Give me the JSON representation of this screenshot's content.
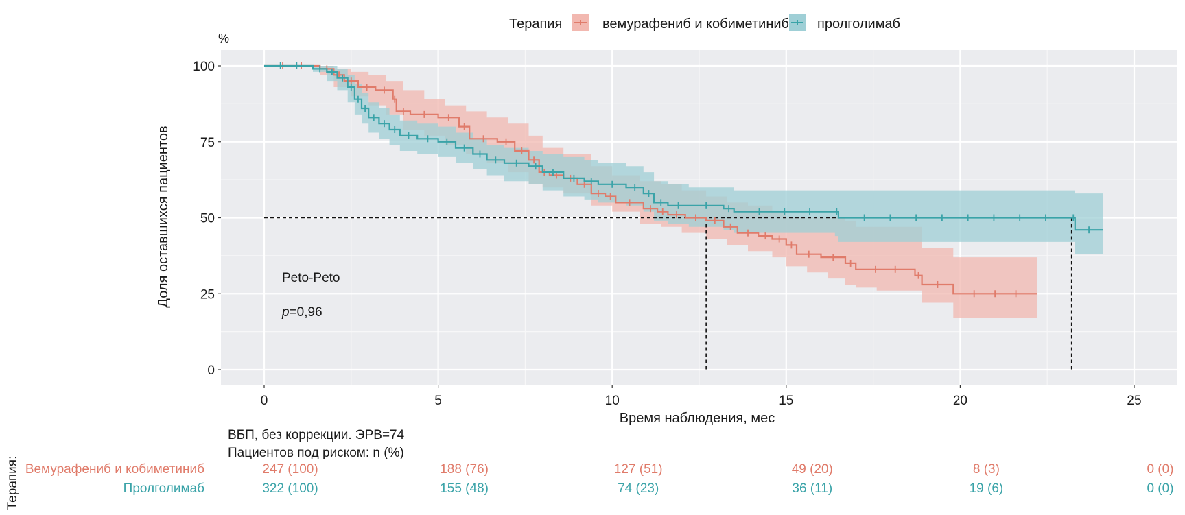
{
  "chart_data": {
    "type": "line",
    "subtype": "kaplan-meier",
    "title": "",
    "xlabel": "Время наблюдения, мес",
    "ylabel": "Доля оставшихся пациентов",
    "y_unit_label": "%",
    "xlim": [
      -1.2,
      26.2
    ],
    "ylim": [
      -5,
      105
    ],
    "x_ticks": [
      0,
      5,
      10,
      15,
      20,
      25
    ],
    "y_ticks": [
      0,
      25,
      50,
      75,
      100
    ],
    "grid": true,
    "legend": {
      "title": "Терапия",
      "position": "top",
      "entries": [
        {
          "label": "вемурафениб и кобиметиниб",
          "color": "#e07b6a"
        },
        {
          "label": "пролголимаб",
          "color": "#3aa3a8"
        }
      ]
    },
    "annotations": {
      "test": "Peto-Peto",
      "p_label": "p",
      "p_value": "=0,96"
    },
    "median_line": {
      "y": 50,
      "medians": [
        12.7,
        23.2
      ]
    },
    "series": [
      {
        "name": "вемурафениб и кобиметиниб",
        "color": "#e07b6a",
        "band_color": "#f2b8b0",
        "steps": [
          [
            0,
            100
          ],
          [
            1.6,
            99
          ],
          [
            2.0,
            97
          ],
          [
            2.3,
            95
          ],
          [
            2.7,
            93
          ],
          [
            3.2,
            92
          ],
          [
            3.7,
            89
          ],
          [
            3.8,
            85
          ],
          [
            4.2,
            84
          ],
          [
            5.0,
            83
          ],
          [
            5.6,
            80
          ],
          [
            5.9,
            76
          ],
          [
            6.7,
            75
          ],
          [
            7.2,
            72
          ],
          [
            7.6,
            69
          ],
          [
            7.9,
            65
          ],
          [
            8.2,
            64
          ],
          [
            8.6,
            63
          ],
          [
            9.0,
            61
          ],
          [
            9.4,
            58
          ],
          [
            9.8,
            57
          ],
          [
            10.1,
            55
          ],
          [
            10.9,
            53
          ],
          [
            11.3,
            52
          ],
          [
            11.6,
            51
          ],
          [
            12.1,
            50
          ],
          [
            12.7,
            49
          ],
          [
            13.2,
            47
          ],
          [
            13.6,
            45
          ],
          [
            14.2,
            44
          ],
          [
            14.6,
            43
          ],
          [
            15.0,
            41
          ],
          [
            15.3,
            38
          ],
          [
            16.0,
            37
          ],
          [
            16.7,
            35
          ],
          [
            17.0,
            33
          ],
          [
            18.7,
            31
          ],
          [
            18.9,
            28
          ],
          [
            19.8,
            25
          ],
          [
            22.2,
            25
          ]
        ],
        "lower": [
          [
            0,
            100
          ],
          [
            1.6,
            97
          ],
          [
            2.0,
            93
          ],
          [
            2.5,
            90
          ],
          [
            3.0,
            87
          ],
          [
            3.5,
            84
          ],
          [
            4.0,
            79
          ],
          [
            4.6,
            77
          ],
          [
            5.2,
            74
          ],
          [
            5.8,
            71
          ],
          [
            6.4,
            68
          ],
          [
            7.0,
            65
          ],
          [
            7.6,
            61
          ],
          [
            8.0,
            60
          ],
          [
            8.6,
            58
          ],
          [
            9.4,
            54
          ],
          [
            10.0,
            52
          ],
          [
            10.8,
            48
          ],
          [
            11.4,
            47
          ],
          [
            12.0,
            45
          ],
          [
            12.7,
            43
          ],
          [
            13.3,
            41
          ],
          [
            13.9,
            39
          ],
          [
            14.6,
            37
          ],
          [
            15.0,
            34
          ],
          [
            15.6,
            32
          ],
          [
            16.2,
            30
          ],
          [
            16.7,
            28
          ],
          [
            17.0,
            27
          ],
          [
            17.6,
            26
          ],
          [
            18.9,
            22
          ],
          [
            19.8,
            17
          ],
          [
            22.2,
            17
          ]
        ],
        "upper": [
          [
            0,
            100
          ],
          [
            1.6,
            100
          ],
          [
            2.0,
            99
          ],
          [
            2.5,
            98
          ],
          [
            3.0,
            97
          ],
          [
            3.5,
            95
          ],
          [
            4.0,
            92
          ],
          [
            4.6,
            89
          ],
          [
            5.2,
            87
          ],
          [
            5.8,
            85
          ],
          [
            6.4,
            83
          ],
          [
            7.0,
            81
          ],
          [
            7.6,
            77
          ],
          [
            8.0,
            73
          ],
          [
            8.6,
            71
          ],
          [
            9.4,
            67
          ],
          [
            10.0,
            64
          ],
          [
            10.8,
            62
          ],
          [
            11.4,
            61
          ],
          [
            12.0,
            59
          ],
          [
            12.7,
            57
          ],
          [
            13.3,
            55
          ],
          [
            13.9,
            54
          ],
          [
            14.6,
            52
          ],
          [
            15.0,
            50
          ],
          [
            15.6,
            50
          ],
          [
            16.2,
            50
          ],
          [
            16.7,
            49
          ],
          [
            17.0,
            47
          ],
          [
            18.9,
            40
          ],
          [
            19.8,
            37
          ],
          [
            22.2,
            37
          ]
        ]
      },
      {
        "name": "пролголимаб",
        "color": "#3aa3a8",
        "band_color": "#9fcfd6",
        "steps": [
          [
            0,
            100
          ],
          [
            1.4,
            99
          ],
          [
            1.8,
            98
          ],
          [
            2.1,
            96
          ],
          [
            2.4,
            93
          ],
          [
            2.6,
            89
          ],
          [
            2.8,
            86
          ],
          [
            3.0,
            83
          ],
          [
            3.3,
            81
          ],
          [
            3.6,
            79
          ],
          [
            3.9,
            77
          ],
          [
            4.4,
            76
          ],
          [
            5.0,
            75
          ],
          [
            5.5,
            73
          ],
          [
            6.0,
            71
          ],
          [
            6.4,
            69
          ],
          [
            6.9,
            68
          ],
          [
            7.6,
            67
          ],
          [
            8.0,
            65
          ],
          [
            8.6,
            63
          ],
          [
            9.2,
            62
          ],
          [
            9.6,
            61
          ],
          [
            10.4,
            60
          ],
          [
            10.9,
            58
          ],
          [
            11.2,
            55
          ],
          [
            11.6,
            54
          ],
          [
            12.2,
            54
          ],
          [
            13.2,
            53
          ],
          [
            13.5,
            52
          ],
          [
            16.4,
            52
          ],
          [
            16.5,
            50
          ],
          [
            23.2,
            50
          ],
          [
            23.3,
            46
          ],
          [
            24.1,
            46
          ]
        ],
        "lower": [
          [
            0,
            100
          ],
          [
            1.4,
            98
          ],
          [
            1.8,
            95
          ],
          [
            2.1,
            92
          ],
          [
            2.4,
            88
          ],
          [
            2.6,
            84
          ],
          [
            2.8,
            81
          ],
          [
            3.0,
            78
          ],
          [
            3.3,
            76
          ],
          [
            3.6,
            74
          ],
          [
            3.9,
            72
          ],
          [
            4.4,
            71
          ],
          [
            5.0,
            70
          ],
          [
            5.5,
            68
          ],
          [
            6.0,
            66
          ],
          [
            6.4,
            64
          ],
          [
            6.9,
            62
          ],
          [
            7.6,
            61
          ],
          [
            8.0,
            59
          ],
          [
            8.6,
            57
          ],
          [
            9.2,
            56
          ],
          [
            9.6,
            55
          ],
          [
            10.4,
            54
          ],
          [
            10.9,
            52
          ],
          [
            11.2,
            49
          ],
          [
            11.6,
            48
          ],
          [
            12.2,
            47
          ],
          [
            13.2,
            46
          ],
          [
            13.5,
            45
          ],
          [
            16.4,
            44
          ],
          [
            16.5,
            42
          ],
          [
            23.2,
            42
          ],
          [
            23.3,
            38
          ],
          [
            24.1,
            38
          ]
        ],
        "upper": [
          [
            0,
            100
          ],
          [
            1.4,
            100
          ],
          [
            1.8,
            100
          ],
          [
            2.1,
            99
          ],
          [
            2.4,
            97
          ],
          [
            2.6,
            94
          ],
          [
            2.8,
            91
          ],
          [
            3.0,
            88
          ],
          [
            3.3,
            86
          ],
          [
            3.6,
            84
          ],
          [
            3.9,
            82
          ],
          [
            4.4,
            81
          ],
          [
            5.0,
            80
          ],
          [
            5.5,
            78
          ],
          [
            6.0,
            76
          ],
          [
            6.4,
            74
          ],
          [
            6.9,
            73
          ],
          [
            7.6,
            72
          ],
          [
            8.0,
            71
          ],
          [
            8.6,
            70
          ],
          [
            9.2,
            69
          ],
          [
            9.6,
            68
          ],
          [
            10.4,
            67
          ],
          [
            10.9,
            65
          ],
          [
            11.2,
            62
          ],
          [
            11.6,
            61
          ],
          [
            12.2,
            60
          ],
          [
            13.2,
            60
          ],
          [
            13.5,
            59
          ],
          [
            16.4,
            59
          ],
          [
            16.5,
            59
          ],
          [
            23.2,
            59
          ],
          [
            23.3,
            58
          ],
          [
            24.1,
            58
          ]
        ]
      }
    ],
    "risk_table": {
      "title_line1": "ВБП, без коррекции. ЭРВ=74",
      "title_line2": "Пациентов под риском: n (%)",
      "group_axis_label": "Терапия:",
      "times": [
        0,
        5,
        10,
        15,
        20,
        25
      ],
      "rows": [
        {
          "label": "Вемурафениб и кобиметиниб",
          "color": "#e07b6a",
          "values": [
            "247 (100)",
            "188 (76)",
            "127 (51)",
            "49 (20)",
            "8 (3)",
            "0 (0)"
          ]
        },
        {
          "label": "Пролголимаб",
          "color": "#3aa3a8",
          "values": [
            "322 (100)",
            "155 (48)",
            "74 (23)",
            "36 (11)",
            "19 (6)",
            "0 (0)"
          ]
        }
      ]
    }
  }
}
